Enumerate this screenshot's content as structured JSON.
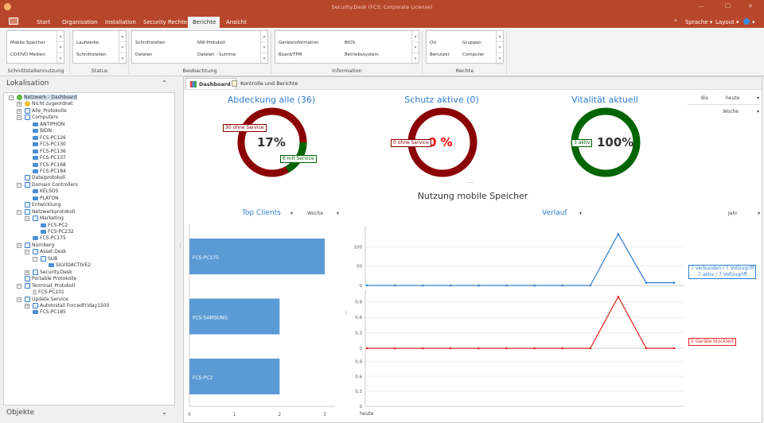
{
  "window": {
    "title": "Security.Desk (FCS: Corporate License)",
    "minimize": "—",
    "maximize": "☐",
    "close": "✕"
  },
  "ribbon_tabs": [
    "Start",
    "Organisation",
    "Installation",
    "Security Rechte",
    "Berichte",
    "Ansicht"
  ],
  "ribbon_active": "Berichte",
  "ribbon_right": {
    "collapse": "^",
    "sprache": "Sprache ▾",
    "layout": "Layout ▾",
    "help": "▾"
  },
  "groups": [
    {
      "label": "Schnittstellennutzung",
      "items": [
        "Mobile Speicher",
        "CD/DVD Medien"
      ]
    },
    {
      "label": "Status",
      "items": [
        "Laufwerke",
        "Schnittstellen"
      ]
    },
    {
      "label": "Beobachtung",
      "items": [
        "Schnittstellen",
        "NW-Protokoll",
        "Dateien",
        "Dateien - Summe"
      ]
    },
    {
      "label": "Information",
      "items": [
        "Geräteinformation",
        "BIOS",
        "Board/TPM",
        "Betriebssystem"
      ]
    },
    {
      "label": "Rechte",
      "items": [
        "OU",
        "Gruppen",
        "Benutzer",
        "Computer"
      ]
    }
  ],
  "left": {
    "title": "Lokalisation",
    "bottom_title": "Objekte",
    "tree": [
      {
        "label": "Netzwerk - Dashboard",
        "level": 0,
        "type": "globe",
        "exp": "-",
        "selected": true
      },
      {
        "label": "Nicht zugeordnet",
        "level": 1,
        "type": "star",
        "exp": "+"
      },
      {
        "label": "Alle_Protokolle",
        "level": 1,
        "type": "folder",
        "exp": "+"
      },
      {
        "label": "Computers",
        "level": 1,
        "type": "folder",
        "exp": "-"
      },
      {
        "label": "ANTIPHON",
        "level": 2,
        "type": "pc"
      },
      {
        "label": "BIDN",
        "level": 2,
        "type": "pc"
      },
      {
        "label": "FCS-PC126",
        "level": 2,
        "type": "pc"
      },
      {
        "label": "FCS-PC130",
        "level": 2,
        "type": "pc"
      },
      {
        "label": "FCS-PC136",
        "level": 2,
        "type": "pc"
      },
      {
        "label": "FCS-PC137",
        "level": 2,
        "type": "pc"
      },
      {
        "label": "FCS-PC168",
        "level": 2,
        "type": "pc"
      },
      {
        "label": "FCS-PC184",
        "level": 2,
        "type": "pc"
      },
      {
        "label": "Dateiprotokoll",
        "level": 1,
        "type": "folder"
      },
      {
        "label": "Domain Controllers",
        "level": 1,
        "type": "folder",
        "exp": "-"
      },
      {
        "label": "KELSOS",
        "level": 2,
        "type": "pc"
      },
      {
        "label": "PLATON",
        "level": 2,
        "type": "pc"
      },
      {
        "label": "Entwicklung",
        "level": 1,
        "type": "folder"
      },
      {
        "label": "Netzwerkprotokoll",
        "level": 1,
        "type": "folder",
        "exp": "-"
      },
      {
        "label": "Marketing",
        "level": 2,
        "type": "folder",
        "exp": "-"
      },
      {
        "label": "FCS-PC2",
        "level": 3,
        "type": "pc"
      },
      {
        "label": "FCS-PC232",
        "level": 3,
        "type": "pc"
      },
      {
        "label": "FCS-PC175",
        "level": 2,
        "type": "pc"
      },
      {
        "label": "Nürnberg",
        "level": 1,
        "type": "folder",
        "exp": "-"
      },
      {
        "label": "Asset.Desk",
        "level": 2,
        "type": "folder",
        "exp": "-"
      },
      {
        "label": "SUB",
        "level": 3,
        "type": "folder",
        "exp": "-"
      },
      {
        "label": "SILVIDACTIVE2",
        "level": 4,
        "type": "pc"
      },
      {
        "label": "Security.Desk",
        "level": 2,
        "type": "folder",
        "exp": "+"
      },
      {
        "label": "Portable Protokolle",
        "level": 1,
        "type": "folder"
      },
      {
        "label": "Terminal_Protokoll",
        "level": 1,
        "type": "folder",
        "exp": "-"
      },
      {
        "label": "FCS-PC101",
        "level": 2,
        "type": "device"
      },
      {
        "label": "Update Service",
        "level": 1,
        "type": "folder",
        "exp": "-"
      },
      {
        "label": "AutoInstall ForcedFriday1500",
        "level": 2,
        "type": "folder",
        "exp": "+"
      },
      {
        "label": "FCS-PC185",
        "level": 2,
        "type": "pc"
      }
    ]
  },
  "doc_tabs": [
    "Dashboard",
    "Kontrolle und Berichte"
  ],
  "dashboard": {
    "donuts": [
      {
        "title": "Abdeckung alle (36)",
        "percent_text": "17%",
        "fraction": 0.17,
        "labels": [
          "30 ohne Service",
          "6 mit Service"
        ]
      },
      {
        "title": "Schutz aktive (0)",
        "percent_text": "0 %",
        "fraction": 0,
        "labels": [
          "0 ohne Service"
        ]
      },
      {
        "title": "Vitalität aktuell",
        "percent_text": "100%",
        "fraction": 1,
        "labels": [
          "3 aktiv"
        ]
      }
    ],
    "filters": {
      "bis": "Bis",
      "bis_value": "heute",
      "period": "Woche"
    },
    "more": ".....",
    "section_title": "Nutzung mobile Speicher",
    "top_clients": {
      "title": "Top Clients",
      "period": "Woche"
    },
    "verlauf": {
      "title": "Verlauf",
      "period": "Jahr"
    },
    "colors": {
      "red": "#8b0000",
      "green": "#006400",
      "blue": "#2c7cd1",
      "bar": "#5b9bd5",
      "line_red": "#e82020"
    }
  },
  "chart_data": [
    {
      "type": "bar",
      "orientation": "horizontal",
      "categories": [
        "FCS-PC175",
        "FCS-SAMSUNG",
        "FCS-PC2"
      ],
      "values": [
        3,
        2,
        2
      ],
      "xlim": [
        0,
        3
      ],
      "xticks": [
        "0",
        "1",
        "2",
        "3"
      ]
    },
    {
      "type": "line",
      "x_label": "heute",
      "panels": [
        {
          "values": [
            0,
            0,
            0,
            0,
            0,
            0,
            0,
            0,
            0,
            133,
            7,
            7
          ],
          "yticks": [
            "0",
            "50",
            "100"
          ],
          "ylim": [
            0,
            140
          ],
          "color": "#2c7cd1",
          "annotation": [
            "7 verbunden / 7 Vollzugriff",
            "7 aktiv / 7 Vollzugriff"
          ]
        },
        {
          "values": [
            0,
            0,
            0,
            0,
            0,
            0,
            0,
            0,
            0,
            1,
            0,
            0
          ],
          "yticks": [
            "0",
            "0,3",
            "0,6",
            "0,9"
          ],
          "ylim": [
            0,
            1.05
          ],
          "color": "#e82020",
          "annotation": [
            "0 Geräte blockiert"
          ]
        },
        {
          "values": [],
          "yticks": [
            "0",
            "0,3",
            "0,6",
            "0,9"
          ],
          "ylim": [
            0,
            1.05
          ]
        }
      ]
    }
  ]
}
